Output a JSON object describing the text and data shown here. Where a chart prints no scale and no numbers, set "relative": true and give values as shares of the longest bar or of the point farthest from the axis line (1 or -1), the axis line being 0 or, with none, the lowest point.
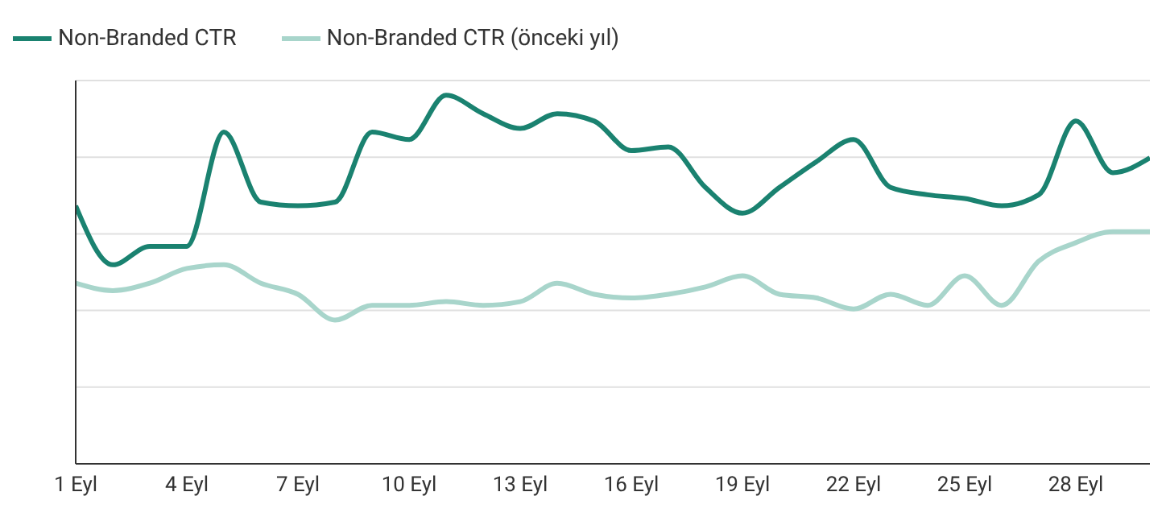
{
  "chart_data": {
    "type": "line",
    "relative": true,
    "categories": [
      "1 Eyl",
      null,
      null,
      "4 Eyl",
      null,
      null,
      "7 Eyl",
      null,
      null,
      "10 Eyl",
      null,
      null,
      "13 Eyl",
      null,
      null,
      "16 Eyl",
      null,
      null,
      "19 Eyl",
      null,
      null,
      "22 Eyl",
      null,
      null,
      "25 Eyl",
      null,
      null,
      "28 Eyl",
      null,
      null
    ],
    "series": [
      {
        "name": "Non-Branded CTR",
        "color": "#1a8270",
        "values": [
          0.7,
          0.54,
          0.59,
          0.59,
          0.9,
          0.71,
          0.7,
          0.71,
          0.9,
          0.88,
          1,
          0.95,
          0.91,
          0.95,
          0.93,
          0.85,
          0.86,
          0.75,
          0.68,
          0.75,
          0.82,
          0.88,
          0.75,
          0.73,
          0.72,
          0.7,
          0.73,
          0.93,
          0.79,
          0.83
        ]
      },
      {
        "name": "Non-Branded CTR (önceki yıl)",
        "color": "#a8d5cb",
        "values": [
          0.49,
          0.47,
          0.49,
          0.53,
          0.54,
          0.49,
          0.46,
          0.39,
          0.43,
          0.43,
          0.44,
          0.43,
          0.44,
          0.49,
          0.46,
          0.45,
          0.46,
          0.48,
          0.51,
          0.46,
          0.45,
          0.42,
          0.46,
          0.43,
          0.51,
          0.43,
          0.55,
          0.6,
          0.63,
          0.63
        ]
      }
    ],
    "grid": "y",
    "legend": "top left",
    "tick_labels": "x",
    "marker": "none",
    "line_style": "solid"
  }
}
